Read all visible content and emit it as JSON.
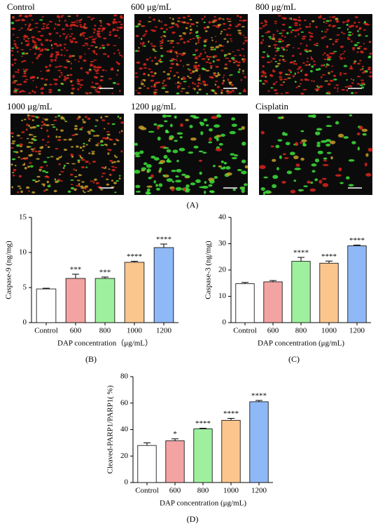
{
  "images": {
    "labels": [
      "Control",
      "600 μg/mL",
      "800 μg/mL",
      "1000 μg/mL",
      "1200 μg/mL",
      "Cisplatin"
    ],
    "caption": "(A)"
  },
  "chart_data": [
    {
      "type": "bar",
      "ylabel": "Caspase-9 (ng/mg)",
      "xlabel": "DAP concentration（μg/mL）",
      "caption": "(B)",
      "categories": [
        "Control",
        "600",
        "800",
        "1000",
        "1200"
      ],
      "values": [
        4.8,
        6.3,
        6.3,
        8.6,
        10.7
      ],
      "errors": [
        0.1,
        0.6,
        0.2,
        0.15,
        0.5
      ],
      "annotations": [
        null,
        "***",
        "***",
        "****",
        "****"
      ],
      "colors": [
        "#ffffff",
        "#f4a3a3",
        "#9ef09e",
        "#fbc68e",
        "#8fb8f6"
      ],
      "ylim": [
        0,
        15
      ],
      "yticks": [
        0,
        5,
        10,
        15
      ]
    },
    {
      "type": "bar",
      "ylabel": "Caspase-3 (ng/mg)",
      "xlabel": "DAP concentration (μg/mL)",
      "caption": "(C)",
      "categories": [
        "Control",
        "600",
        "800",
        "1000",
        "1200"
      ],
      "values": [
        14.8,
        15.5,
        23.3,
        22.6,
        29.2
      ],
      "errors": [
        0.5,
        0.5,
        1.5,
        0.8,
        0.3
      ],
      "annotations": [
        null,
        null,
        "****",
        "****",
        "****"
      ],
      "colors": [
        "#ffffff",
        "#f4a3a3",
        "#9ef09e",
        "#fbc68e",
        "#8fb8f6"
      ],
      "ylim": [
        0,
        40
      ],
      "yticks": [
        0,
        10,
        20,
        30,
        40
      ]
    },
    {
      "type": "bar",
      "ylabel": "Cleaved-PARP1/PARP1( %)",
      "xlabel": "DAP concentration (μg/mL)",
      "caption": "(D)",
      "categories": [
        "Control",
        "600",
        "800",
        "1000",
        "1200"
      ],
      "values": [
        28,
        31.5,
        40.5,
        47,
        61
      ],
      "errors": [
        2,
        1.5,
        0.5,
        1.5,
        1
      ],
      "annotations": [
        null,
        "*",
        "****",
        "****",
        "****"
      ],
      "colors": [
        "#ffffff",
        "#f4a3a3",
        "#9ef09e",
        "#fbc68e",
        "#8fb8f6"
      ],
      "ylim": [
        0,
        80
      ],
      "yticks": [
        0,
        20,
        40,
        60,
        80
      ]
    }
  ]
}
